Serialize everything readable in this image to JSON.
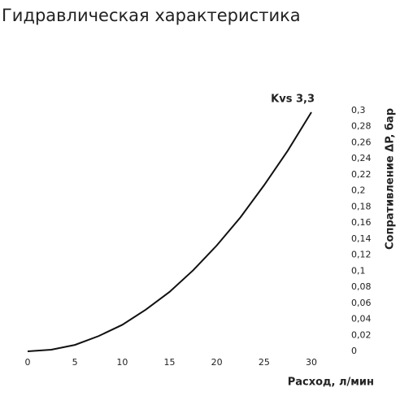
{
  "chart_data": {
    "type": "line",
    "title": "Гидравлическая характеристика",
    "x_label": "Расход, л/мин",
    "y_label": "Сопративление ΔP, бар",
    "x": [
      0,
      2.5,
      5,
      7.5,
      10,
      12.5,
      15,
      17.5,
      20,
      22.5,
      25,
      27.5,
      30
    ],
    "series": [
      {
        "name": "Kvs 3,3",
        "color": "#111111",
        "values": [
          0,
          0.002,
          0.008,
          0.019,
          0.033,
          0.052,
          0.074,
          0.101,
          0.132,
          0.167,
          0.207,
          0.25,
          0.298
        ]
      }
    ],
    "xlim": [
      0,
      30
    ],
    "xticks": [
      0,
      5,
      10,
      15,
      20,
      25,
      30
    ],
    "ylim": [
      0,
      0.3
    ],
    "yticks": [
      0,
      {
        "value": 0.02,
        "label": "0,02"
      },
      {
        "value": 0.04,
        "label": "0,04"
      },
      {
        "value": 0.06,
        "label": "0,06"
      },
      {
        "value": 0.08,
        "label": "0,08"
      },
      {
        "value": 0.1,
        "label": "0,1"
      },
      {
        "value": 0.12,
        "label": "0,12"
      },
      {
        "value": 0.14,
        "label": "0,14"
      },
      {
        "value": 0.16,
        "label": "0,16"
      },
      {
        "value": 0.18,
        "label": "0,18"
      },
      {
        "value": 0.2,
        "label": "0,2"
      },
      {
        "value": 0.22,
        "label": "0,22"
      },
      {
        "value": 0.24,
        "label": "0,24"
      },
      {
        "value": 0.26,
        "label": "0,26"
      },
      {
        "value": 0.28,
        "label": "0,28"
      },
      {
        "value": 0.3,
        "label": "0,3"
      }
    ],
    "grid": false
  }
}
